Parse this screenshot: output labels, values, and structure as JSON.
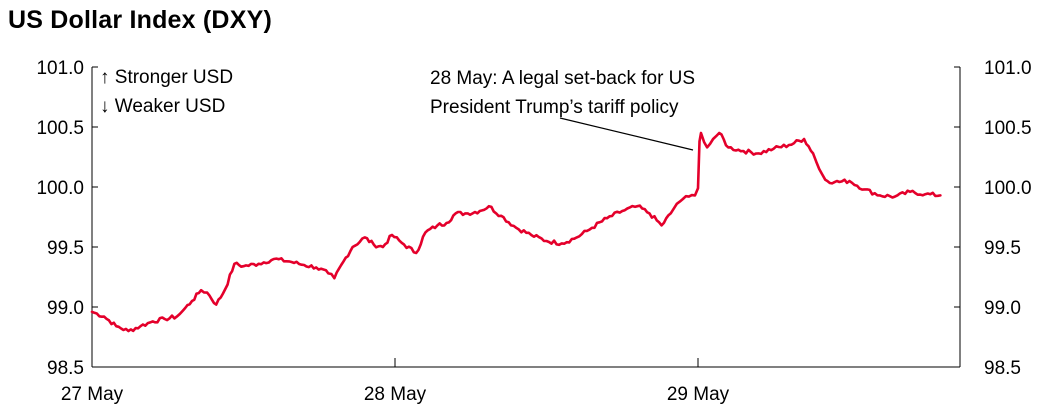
{
  "chart_data": {
    "type": "line",
    "title": "US Dollar Index (DXY)",
    "xlabel": "",
    "ylabel": "",
    "x_tick_labels": [
      "27 May",
      "28 May",
      "29 May"
    ],
    "ylim": [
      98.5,
      101.0
    ],
    "y_ticks": [
      "98.5",
      "99.0",
      "99.5",
      "100.0",
      "100.5",
      "101.0"
    ],
    "legend_notes": [
      "↑ Stronger USD",
      "↓ Weaker USD"
    ],
    "annotation": {
      "lines": [
        "28 May: A legal set-back for US",
        "President Trump’s tariff policy"
      ],
      "points_to_x": 2.0
    },
    "colors": {
      "series": "#e4002b",
      "axis": "#000000"
    },
    "series": [
      {
        "x": [
          0.0,
          0.04,
          0.08,
          0.12,
          0.16,
          0.2,
          0.24,
          0.28,
          0.3,
          0.33,
          0.36,
          0.38,
          0.41,
          0.44,
          0.47,
          0.5,
          0.55,
          0.6,
          0.65,
          0.7,
          0.74,
          0.78,
          0.8,
          0.83,
          0.86,
          0.9,
          0.93,
          0.96,
          0.99,
          1.03,
          1.07,
          1.1,
          1.14,
          1.17,
          1.2,
          1.24,
          1.28,
          1.31,
          1.35,
          1.4,
          1.45,
          1.5,
          1.55,
          1.6,
          1.65,
          1.7,
          1.75,
          1.8,
          1.84,
          1.88,
          1.91,
          1.93,
          1.95,
          1.97,
          1.99,
          2.0,
          2.005,
          2.01,
          2.03,
          2.05,
          2.07,
          2.1,
          2.15,
          2.2,
          2.25,
          2.3,
          2.35,
          2.38,
          2.4,
          2.42,
          2.45,
          2.5,
          2.55,
          2.6,
          2.65,
          2.7,
          2.75,
          2.8
        ],
        "values": [
          98.96,
          98.92,
          98.84,
          98.8,
          98.84,
          98.88,
          98.9,
          98.92,
          98.97,
          99.05,
          99.14,
          99.12,
          99.02,
          99.15,
          99.36,
          99.34,
          99.36,
          99.4,
          99.38,
          99.35,
          99.33,
          99.28,
          99.24,
          99.38,
          99.5,
          99.58,
          99.52,
          99.5,
          99.6,
          99.52,
          99.45,
          99.62,
          99.68,
          99.7,
          99.78,
          99.78,
          99.8,
          99.84,
          99.76,
          99.66,
          99.6,
          99.55,
          99.53,
          99.58,
          99.66,
          99.74,
          99.8,
          99.84,
          99.78,
          99.68,
          99.78,
          99.86,
          99.9,
          99.92,
          99.93,
          99.99,
          100.38,
          100.45,
          100.33,
          100.4,
          100.45,
          100.33,
          100.3,
          100.28,
          100.32,
          100.35,
          100.4,
          100.28,
          100.15,
          100.06,
          100.04,
          100.05,
          99.98,
          99.93,
          99.92,
          99.96,
          99.94,
          99.93
        ]
      }
    ]
  }
}
